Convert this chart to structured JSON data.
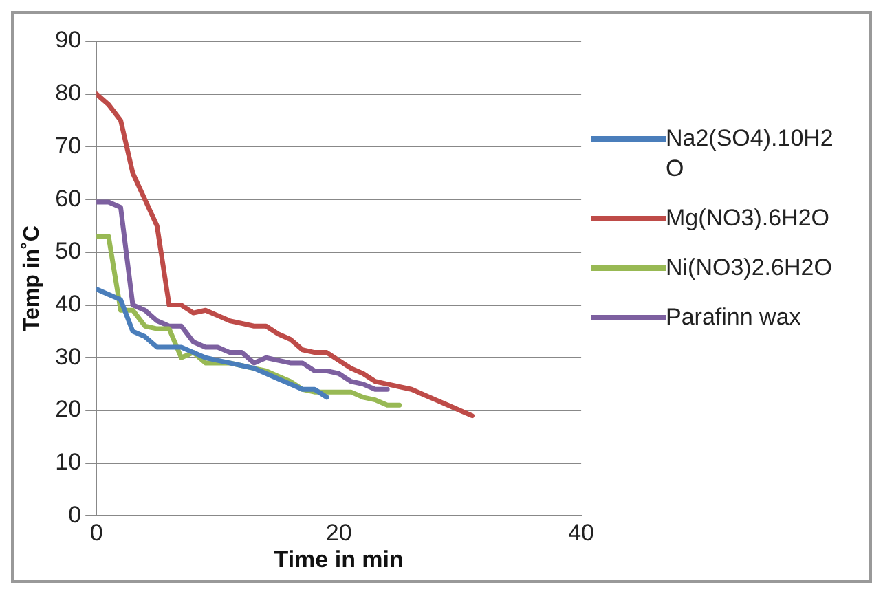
{
  "chart_data": {
    "type": "line",
    "xlabel": "Time in min",
    "ylabel": "Temp in˚C",
    "xlim": [
      0,
      40
    ],
    "xticks": [
      0,
      20,
      40
    ],
    "ylim": [
      0,
      90
    ],
    "yticks": [
      0,
      10,
      20,
      30,
      40,
      50,
      60,
      70,
      80,
      90
    ],
    "grid": "y",
    "legend": "right",
    "marker": "none",
    "line_style": "solid",
    "series": [
      {
        "name": "Na2(SO4).10H2O",
        "color": "#4a7ebb",
        "x": [
          0,
          1,
          2,
          3,
          4,
          5,
          6,
          7,
          8,
          9,
          10,
          11,
          12,
          13,
          14,
          15,
          16,
          17,
          18,
          19
        ],
        "values": [
          43,
          42,
          41,
          35,
          34,
          32,
          32,
          32,
          31,
          30,
          29.5,
          29,
          28.5,
          28,
          27,
          26,
          25,
          24,
          24,
          22.5
        ]
      },
      {
        "name": "Mg(NO3).6H2O",
        "color": "#be4b48",
        "x": [
          0,
          1,
          2,
          3,
          4,
          5,
          6,
          7,
          8,
          9,
          10,
          11,
          12,
          13,
          14,
          15,
          16,
          17,
          18,
          19,
          20,
          21,
          22,
          23,
          24,
          25,
          26,
          27,
          28,
          29,
          30,
          31
        ],
        "values": [
          80,
          78,
          75,
          65,
          60,
          55,
          40,
          40,
          38.5,
          39,
          38,
          37,
          36.5,
          36,
          36,
          34.5,
          33.5,
          31.5,
          31,
          31,
          29.5,
          28,
          27,
          25.5,
          25,
          24.5,
          24,
          23,
          22,
          21,
          20,
          19
        ]
      },
      {
        "name": "Ni(NO3)2.6H2O",
        "color": "#98b954",
        "x": [
          0,
          1,
          2,
          3,
          4,
          5,
          6,
          7,
          8,
          9,
          10,
          11,
          12,
          13,
          14,
          15,
          16,
          17,
          18,
          19,
          20,
          21,
          22,
          23,
          24,
          25
        ],
        "values": [
          53,
          53,
          39,
          39,
          36,
          35.5,
          35.5,
          30,
          31,
          29,
          29,
          29,
          28.5,
          28,
          27.5,
          26.5,
          25.5,
          24,
          23.5,
          23.5,
          23.5,
          23.5,
          22.5,
          22,
          21,
          21
        ]
      },
      {
        "name": "Parafinn wax",
        "color": "#7d60a0",
        "x": [
          0,
          1,
          2,
          3,
          4,
          5,
          6,
          7,
          8,
          9,
          10,
          11,
          12,
          13,
          14,
          15,
          16,
          17,
          18,
          19,
          20,
          21,
          22,
          23,
          24
        ],
        "values": [
          59.5,
          59.5,
          58.5,
          40,
          39,
          37,
          36,
          36,
          33,
          32,
          32,
          31,
          31,
          29,
          30,
          29.5,
          29,
          29,
          27.5,
          27.5,
          27,
          25.5,
          25,
          24,
          24
        ]
      }
    ]
  }
}
